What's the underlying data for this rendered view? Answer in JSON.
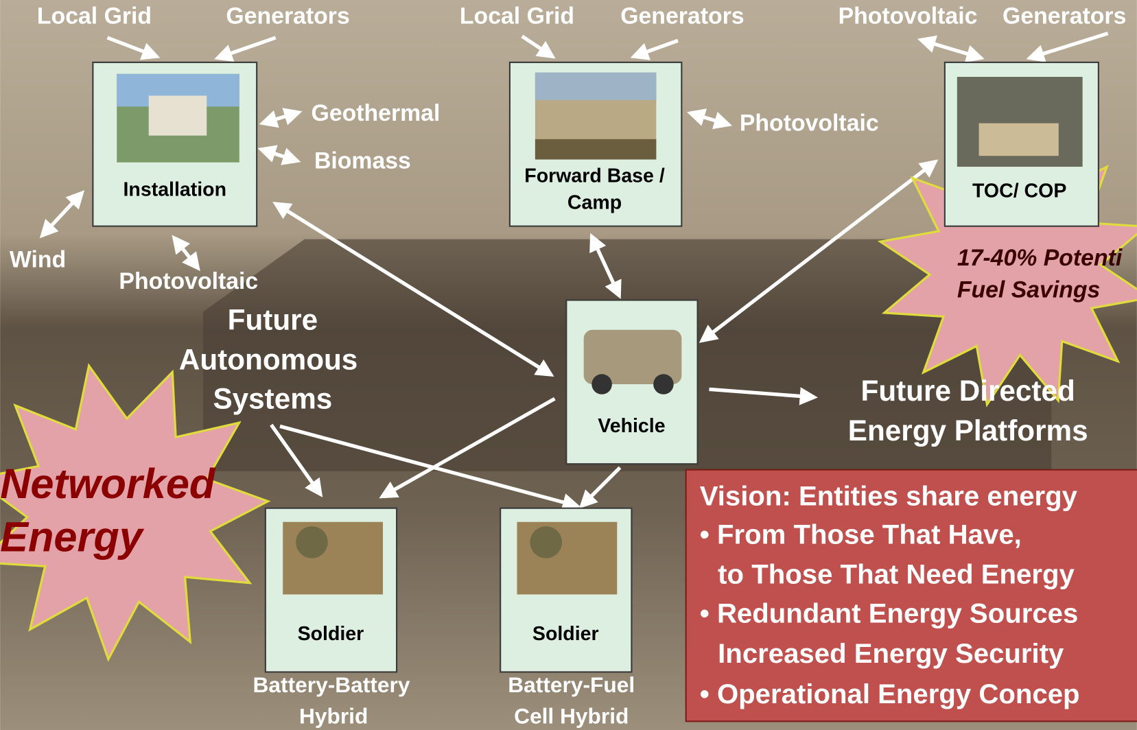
{
  "nodes": [
    {
      "label": [
        "Installation"
      ],
      "sources": [
        "Local Grid",
        "Generators",
        "Geothermal",
        "Biomass",
        "Wind",
        "Photovoltaic"
      ]
    },
    {
      "label": [
        "Forward Base /",
        "Camp"
      ],
      "sources": [
        "Local Grid",
        "Generators",
        "Photovoltaic"
      ]
    },
    {
      "label": [
        "TOC/ COP"
      ],
      "sources": [
        "Photovoltaic",
        "Generators"
      ]
    },
    {
      "label": [
        "Vehicle"
      ]
    },
    {
      "label": [
        "Soldier"
      ],
      "caption": [
        "Battery-Battery",
        "Hybrid"
      ]
    },
    {
      "label": [
        "Soldier"
      ],
      "caption": [
        "Battery-Fuel",
        "Cell Hybrid"
      ]
    }
  ],
  "future_autonomous": [
    "Future",
    "Autonomous",
    "Systems"
  ],
  "future_directed": [
    "Future Directed",
    "Energy Platforms"
  ],
  "savings_star": [
    "17-40% Potenti",
    "Fuel Savings"
  ],
  "networked_star": [
    "Networked",
    "Energy"
  ],
  "vision": [
    "Vision: Entities share energy",
    "• From Those That Have,",
    "to Those That Need Energy",
    "• Redundant Energy Sources",
    "Increased Energy Security",
    "• Operational Energy Concep"
  ]
}
